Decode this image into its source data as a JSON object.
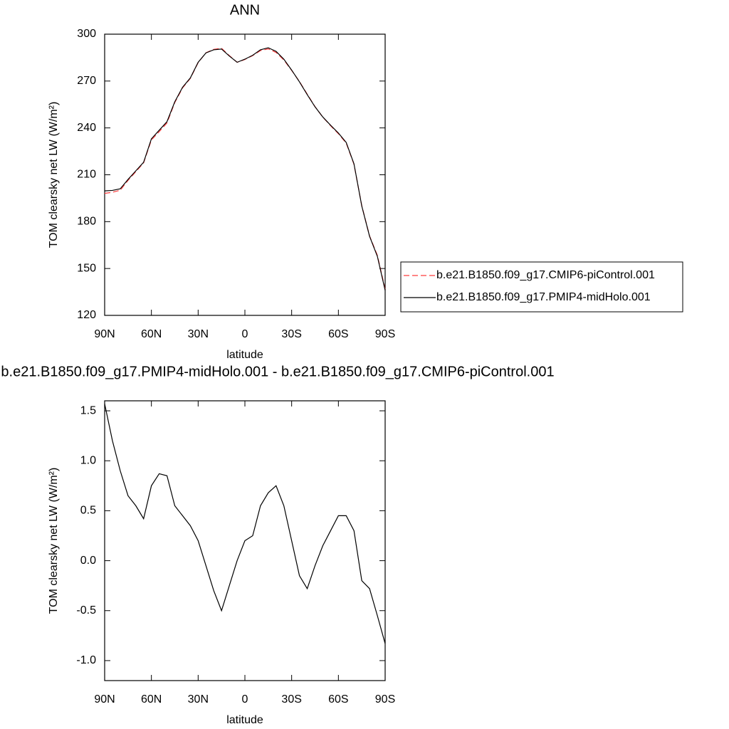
{
  "chart_data": [
    {
      "type": "line",
      "title": "ANN",
      "xlabel": "latitude",
      "ylabel": "TOM clearsky net LW (W/m²)",
      "x": [
        90,
        85,
        80,
        75,
        70,
        65,
        60,
        55,
        50,
        45,
        40,
        35,
        30,
        25,
        20,
        15,
        10,
        5,
        0,
        -5,
        -10,
        -15,
        -20,
        -25,
        -30,
        -35,
        -40,
        -45,
        -50,
        -55,
        -60,
        -65,
        -70,
        -75,
        -80,
        -85,
        -90
      ],
      "series": [
        {
          "name": "b.e21.B1850.f09_g17.CMIP6-piControl.001",
          "color": "#ff3c3c",
          "line_style": "dashed",
          "values": [
            198.1,
            198.8,
            200.1,
            206.4,
            212.0,
            217.6,
            232.3,
            237.6,
            243.2,
            256.2,
            265.6,
            271.7,
            281.8,
            288.1,
            290.3,
            291.0,
            286.3,
            282.0,
            283.8,
            286.3,
            289.5,
            290.6,
            288.3,
            283.5,
            276.8,
            269.7,
            261.6,
            253.6,
            246.9,
            241.4,
            236.3,
            230.3,
            216.7,
            190.2,
            170.9,
            158.4,
            136.8
          ]
        },
        {
          "name": "b.e21.B1850.f09_g17.PMIP4-midHolo.001",
          "color": "#000000",
          "line_style": "solid",
          "values": [
            199.7,
            200.0,
            201.0,
            207.0,
            212.5,
            218.0,
            233.0,
            238.5,
            244.0,
            256.7,
            266.0,
            272.0,
            282.0,
            288.0,
            290.0,
            290.5,
            286.0,
            282.0,
            284.0,
            286.5,
            290.0,
            291.3,
            289.0,
            284.0,
            277.0,
            269.5,
            261.3,
            253.5,
            247.0,
            241.7,
            236.7,
            230.7,
            217.0,
            190.0,
            170.6,
            157.8,
            136.0
          ]
        }
      ],
      "xlim": [
        90,
        -90
      ],
      "xticks": [
        {
          "value": 90,
          "label": "90N"
        },
        {
          "value": 60,
          "label": "60N"
        },
        {
          "value": 30,
          "label": "30N"
        },
        0,
        {
          "value": -30,
          "label": "30S"
        },
        {
          "value": -60,
          "label": "60S"
        },
        {
          "value": -90,
          "label": "90S"
        }
      ],
      "ylim": [
        120,
        300
      ],
      "yticks": [
        120,
        150,
        180,
        210,
        240,
        270,
        300
      ],
      "legend": "right"
    },
    {
      "type": "line",
      "title": "b.e21.B1850.f09_g17.PMIP4-midHolo.001 - b.e21.B1850.f09_g17.CMIP6-piControl.001",
      "xlabel": "latitude",
      "ylabel": "TOM clearsky net LW (W/m²)",
      "x": [
        90,
        85,
        80,
        75,
        70,
        65,
        60,
        55,
        50,
        45,
        40,
        35,
        30,
        25,
        20,
        15,
        10,
        5,
        0,
        -5,
        -10,
        -15,
        -20,
        -25,
        -30,
        -35,
        -40,
        -45,
        -50,
        -55,
        -60,
        -65,
        -70,
        -75,
        -80,
        -85,
        -90
      ],
      "series": [
        {
          "color": "#000000",
          "line_style": "solid",
          "values": [
            1.57,
            1.2,
            0.9,
            0.65,
            0.55,
            0.42,
            0.75,
            0.87,
            0.85,
            0.55,
            0.45,
            0.35,
            0.2,
            -0.05,
            -0.3,
            -0.5,
            -0.25,
            0.0,
            0.2,
            0.25,
            0.55,
            0.68,
            0.75,
            0.55,
            0.2,
            -0.15,
            -0.28,
            -0.05,
            0.15,
            0.3,
            0.45,
            0.45,
            0.3,
            -0.2,
            -0.28,
            -0.55,
            -0.83
          ]
        }
      ],
      "xlim": [
        90,
        -90
      ],
      "xticks": [
        {
          "value": 90,
          "label": "90N"
        },
        {
          "value": 60,
          "label": "60N"
        },
        {
          "value": 30,
          "label": "30N"
        },
        0,
        {
          "value": -30,
          "label": "30S"
        },
        {
          "value": -60,
          "label": "60S"
        },
        {
          "value": -90,
          "label": "90S"
        }
      ],
      "ylim": [
        -1.2,
        1.6
      ],
      "yticks": [
        {
          "value": -1,
          "label": "-1.0"
        },
        -0.5,
        {
          "value": 0,
          "label": "0.0"
        },
        0.5,
        {
          "value": 1,
          "label": "1.0"
        },
        1.5
      ]
    }
  ]
}
